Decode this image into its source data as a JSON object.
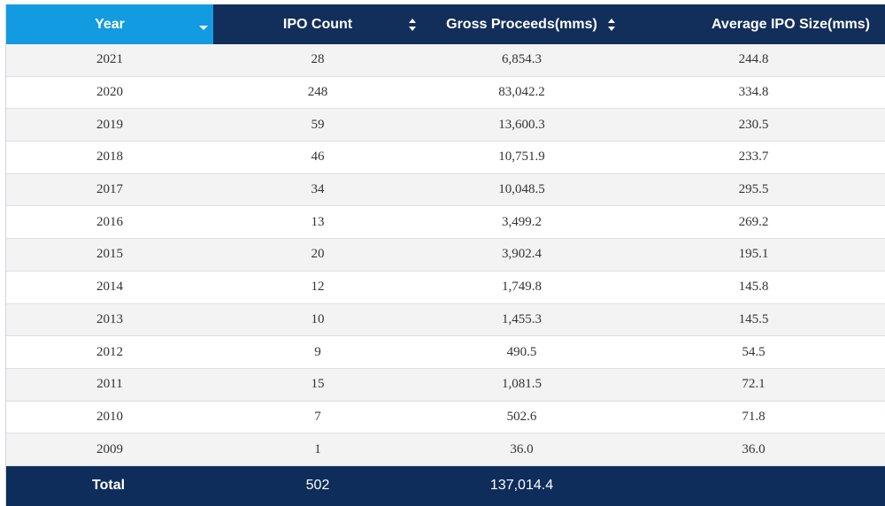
{
  "table": {
    "columns": [
      {
        "label": "Year"
      },
      {
        "label": "IPO Count"
      },
      {
        "label": "Gross Proceeds(mms)"
      },
      {
        "label": "Average IPO Size(mms)"
      }
    ],
    "rows": [
      {
        "year": "2021",
        "count": "28",
        "gross": "6,854.3",
        "avg": "244.8"
      },
      {
        "year": "2020",
        "count": "248",
        "gross": "83,042.2",
        "avg": "334.8"
      },
      {
        "year": "2019",
        "count": "59",
        "gross": "13,600.3",
        "avg": "230.5"
      },
      {
        "year": "2018",
        "count": "46",
        "gross": "10,751.9",
        "avg": "233.7"
      },
      {
        "year": "2017",
        "count": "34",
        "gross": "10,048.5",
        "avg": "295.5"
      },
      {
        "year": "2016",
        "count": "13",
        "gross": "3,499.2",
        "avg": "269.2"
      },
      {
        "year": "2015",
        "count": "20",
        "gross": "3,902.4",
        "avg": "195.1"
      },
      {
        "year": "2014",
        "count": "12",
        "gross": "1,749.8",
        "avg": "145.8"
      },
      {
        "year": "2013",
        "count": "10",
        "gross": "1,455.3",
        "avg": "145.5"
      },
      {
        "year": "2012",
        "count": "9",
        "gross": "490.5",
        "avg": "54.5"
      },
      {
        "year": "2011",
        "count": "15",
        "gross": "1,081.5",
        "avg": "72.1"
      },
      {
        "year": "2010",
        "count": "7",
        "gross": "502.6",
        "avg": "71.8"
      },
      {
        "year": "2009",
        "count": "1",
        "gross": "36.0",
        "avg": "36.0"
      }
    ],
    "footer": {
      "label": "Total",
      "count": "502",
      "gross": "137,014.4",
      "avg": ""
    }
  },
  "icons": {
    "year_sort": "caret-down-icon",
    "column_sort": "sort-arrows-icon"
  },
  "colors": {
    "header_bg": "#122e5a",
    "active_header_bg": "#129be0",
    "footer_bg": "#0e2d5b",
    "stripe_bg": "#f3f3f3"
  }
}
